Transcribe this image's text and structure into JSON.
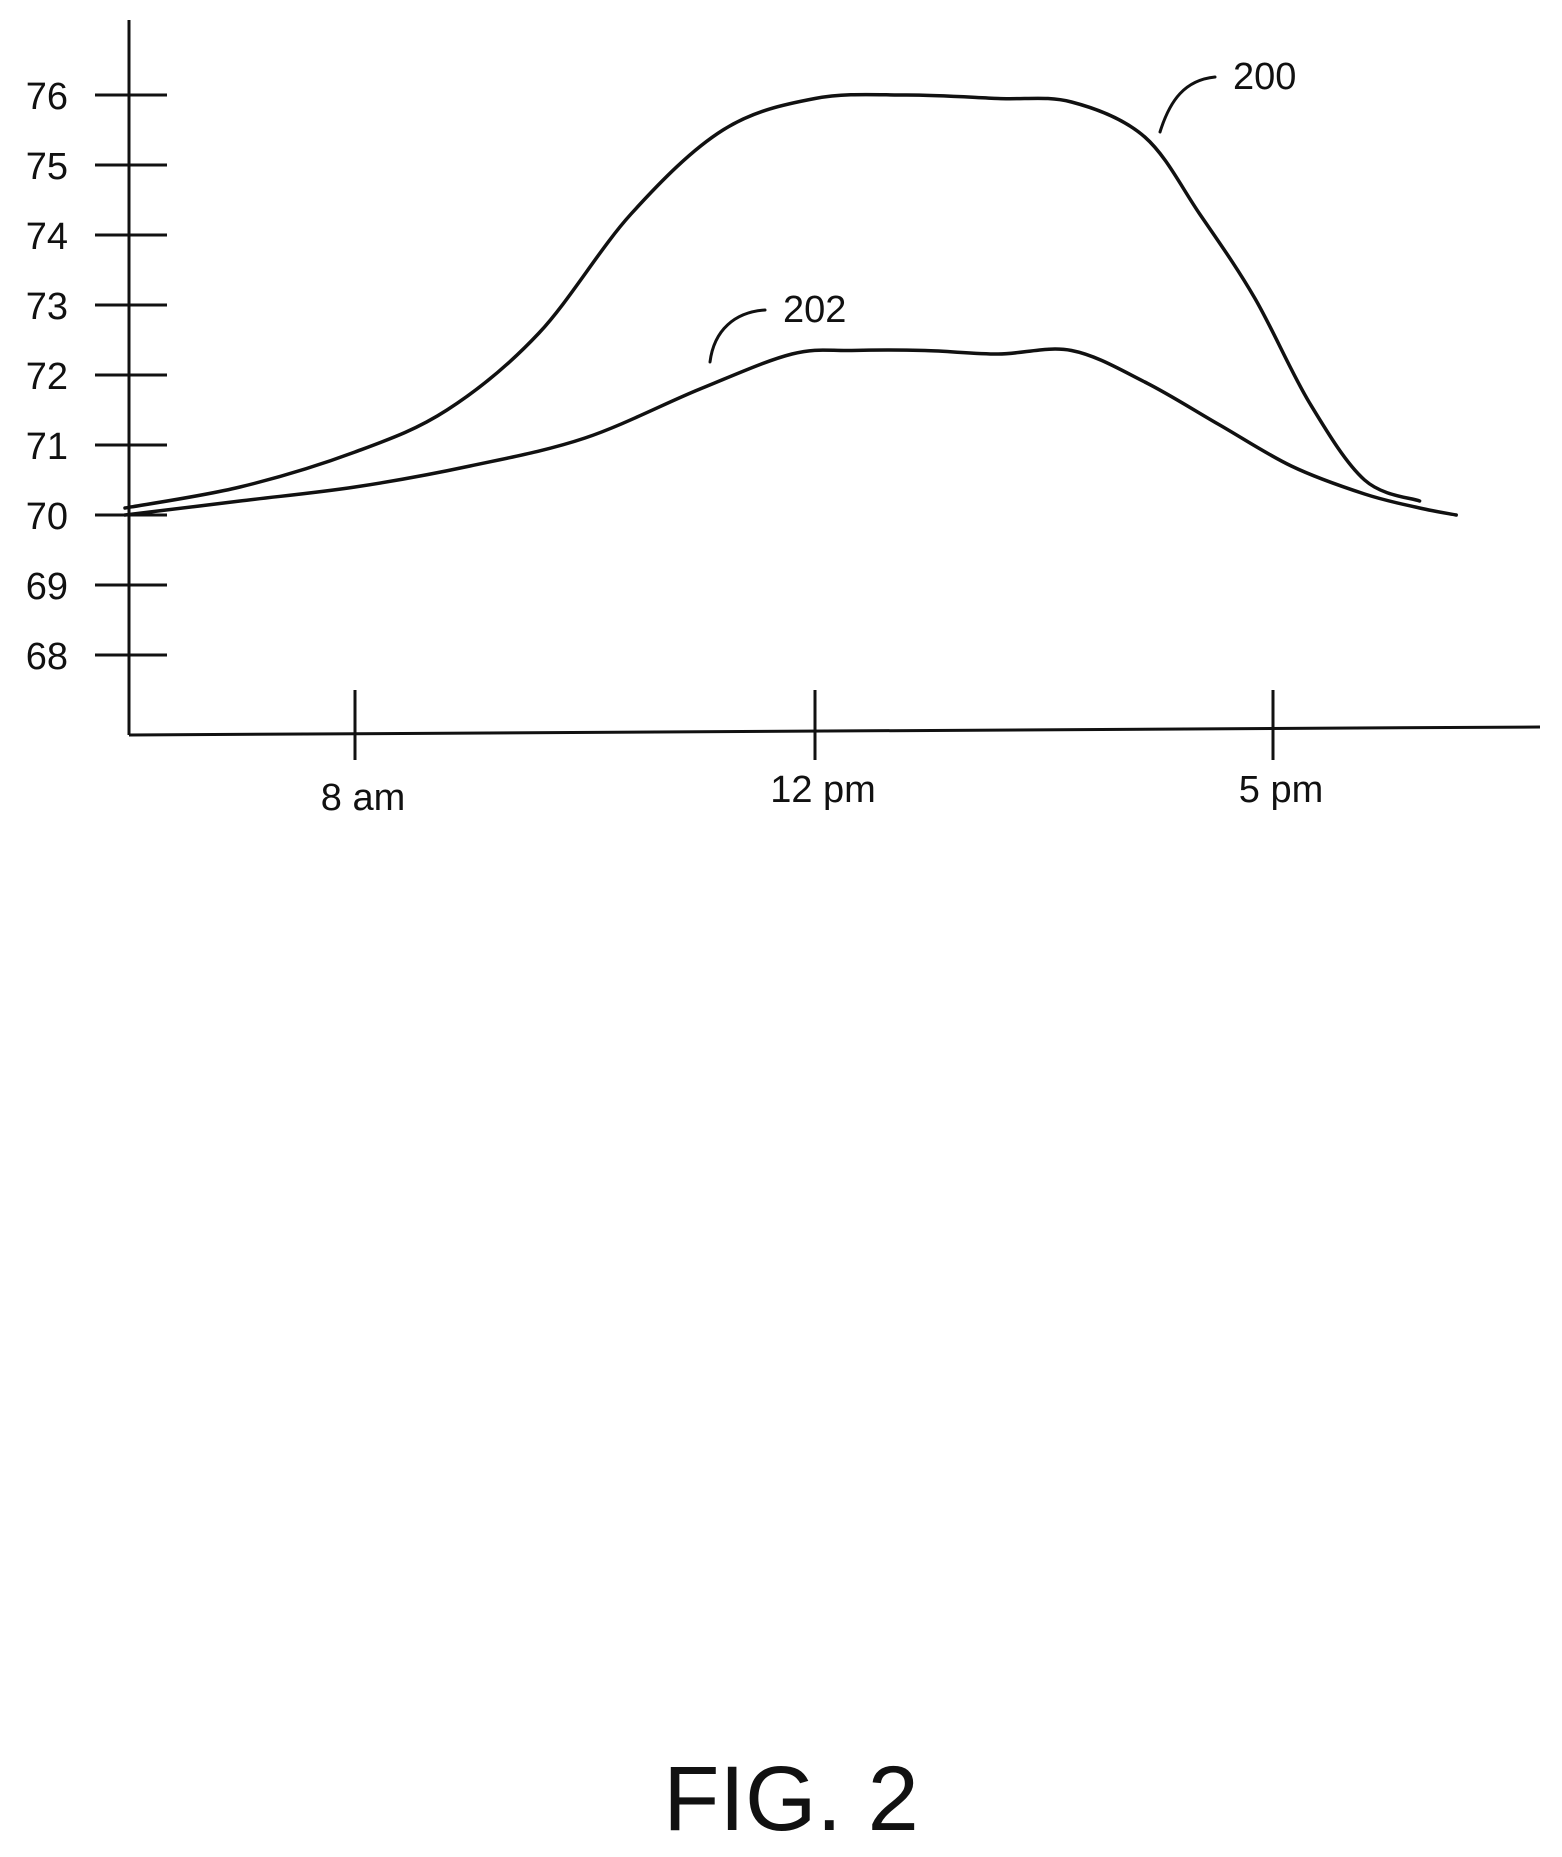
{
  "chart_data": {
    "type": "line",
    "title": "",
    "xlabel": "",
    "ylabel": "",
    "grid": false,
    "y_ticks": [
      "76",
      "75",
      "74",
      "73",
      "72",
      "71",
      "70",
      "69",
      "68"
    ],
    "y_tick_values": [
      76,
      75,
      74,
      73,
      72,
      71,
      70,
      69,
      68
    ],
    "x_ticks": [
      "8 am",
      "12 pm",
      "5 pm"
    ],
    "x_tick_values": [
      8,
      12,
      17
    ],
    "series": [
      {
        "reference": "200",
        "x": [
          6.0,
          7.0,
          8.0,
          8.8,
          9.6,
          10.4,
          11.2,
          12.0,
          13.0,
          14.0,
          14.8,
          15.6,
          16.2,
          16.8,
          17.4,
          18.0,
          18.6
        ],
        "y": [
          70.1,
          70.4,
          70.9,
          71.5,
          72.6,
          74.3,
          75.5,
          75.95,
          76.0,
          75.95,
          75.9,
          75.4,
          74.3,
          73.1,
          71.6,
          70.5,
          70.2
        ]
      },
      {
        "reference": "202",
        "x": [
          6.0,
          7.0,
          8.0,
          9.0,
          10.0,
          11.0,
          11.8,
          12.4,
          13.2,
          14.0,
          14.8,
          15.6,
          16.4,
          17.2,
          18.0,
          18.6,
          19.0
        ],
        "y": [
          70.0,
          70.2,
          70.4,
          70.7,
          71.1,
          71.8,
          72.3,
          72.35,
          72.35,
          72.3,
          72.35,
          71.9,
          71.3,
          70.7,
          70.3,
          70.1,
          70.0
        ]
      }
    ]
  },
  "figure_label": "FIG. 2"
}
